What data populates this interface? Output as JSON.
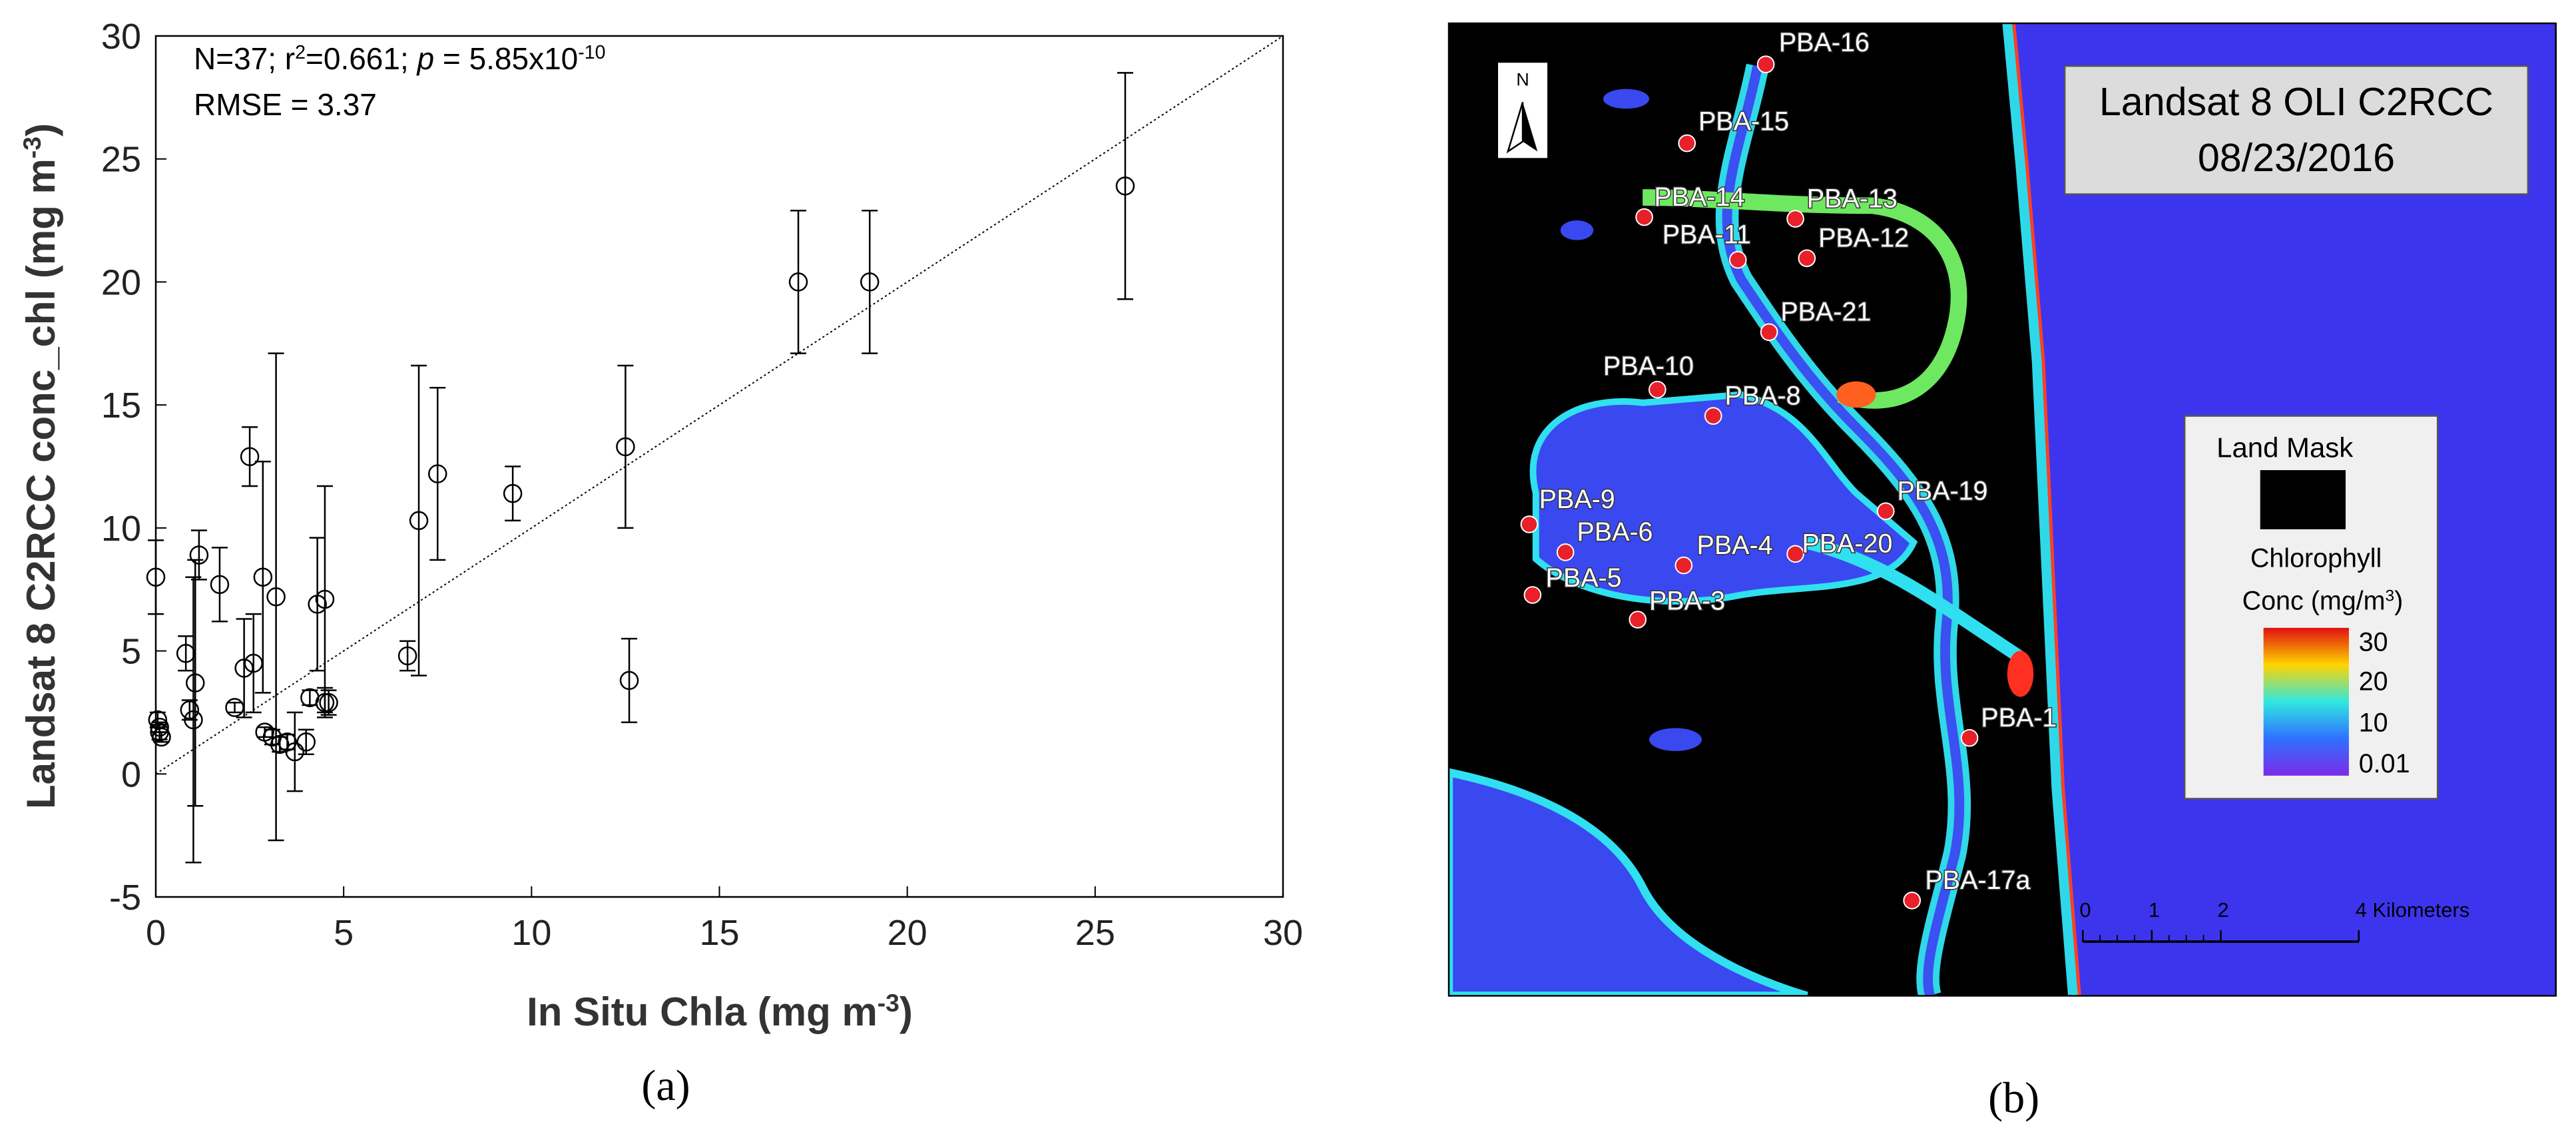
{
  "chart_data": {
    "type": "scatter",
    "annotation": [
      "N=37; r",
      "2",
      "=0.661; ",
      "p",
      " = 5.85x10",
      "-10"
    ],
    "annotation2": "RMSE = 3.37",
    "xlabel": [
      "In Situ Chla (mg m",
      "-3",
      ")"
    ],
    "ylabel": [
      "Landsat 8 C2RCC conc_chl (mg m",
      "-3",
      ")"
    ],
    "panel_label": "(a)",
    "xlim": [
      0,
      30
    ],
    "ylim": [
      -5,
      30
    ],
    "xticks": [
      0,
      5,
      10,
      15,
      20,
      25,
      30
    ],
    "yticks": [
      -5,
      0,
      5,
      10,
      15,
      20,
      25,
      30
    ],
    "x": [
      0,
      0.05,
      0.1,
      0.15,
      0.8,
      0.9,
      1.0,
      1.05,
      1.15,
      1.7,
      2.1,
      2.35,
      2.5,
      2.6,
      2.85,
      2.9,
      3.1,
      3.2,
      3.3,
      3.5,
      3.7,
      4.0,
      4.1,
      4.3,
      4.5,
      4.5,
      4.6,
      6.7,
      7.0,
      7.5,
      9.5,
      12.5,
      12.6,
      17.1,
      19.0,
      25.8,
      0.1
    ],
    "values": [
      8.0,
      2.2,
      1.7,
      1.5,
      4.9,
      2.6,
      2.2,
      3.7,
      8.9,
      7.7,
      2.7,
      4.3,
      12.9,
      4.5,
      8.0,
      1.7,
      1.5,
      7.2,
      1.2,
      1.3,
      0.9,
      1.3,
      3.1,
      6.9,
      7.1,
      2.9,
      2.9,
      4.8,
      10.3,
      12.2,
      11.4,
      13.3,
      3.8,
      20.0,
      20.0,
      23.9,
      1.9
    ],
    "errors": [
      1.5,
      0.3,
      0.3,
      0.2,
      0.7,
      0.4,
      5.8,
      5.0,
      1.0,
      1.5,
      0.2,
      2.0,
      1.2,
      2.0,
      4.7,
      0.2,
      0.3,
      9.9,
      0.3,
      0.3,
      1.6,
      0.5,
      0.3,
      2.7,
      4.6,
      0.6,
      0.5,
      0.6,
      6.3,
      3.5,
      1.1,
      3.3,
      1.7,
      2.9,
      2.9,
      4.6,
      0.2
    ],
    "color": "#000000"
  },
  "map": {
    "title": [
      "Landsat 8 OLI C2RCC",
      "08/23/2016"
    ],
    "legend_title": "Land Mask",
    "legend_subtitle": [
      "Chlorophyll",
      "Conc (mg/m",
      "3",
      ")"
    ],
    "colorbar_labels": [
      30,
      20,
      10,
      0.01
    ],
    "north": "N",
    "scale_bar": [
      "0",
      "1",
      "2",
      "4 Kilometers"
    ],
    "stations": [
      "PBA-16",
      "PBA-15",
      "PBA-14",
      "PBA-13",
      "PBA-11",
      "PBA-12",
      "PBA-21",
      "PBA-10",
      "PBA-8",
      "PBA-19",
      "PBA-9",
      "PBA-6",
      "PBA-20",
      "PBA-4",
      "PBA-5",
      "PBA-3",
      "PBA-1",
      "PBA-17a"
    ],
    "panel_label": "(b)"
  }
}
